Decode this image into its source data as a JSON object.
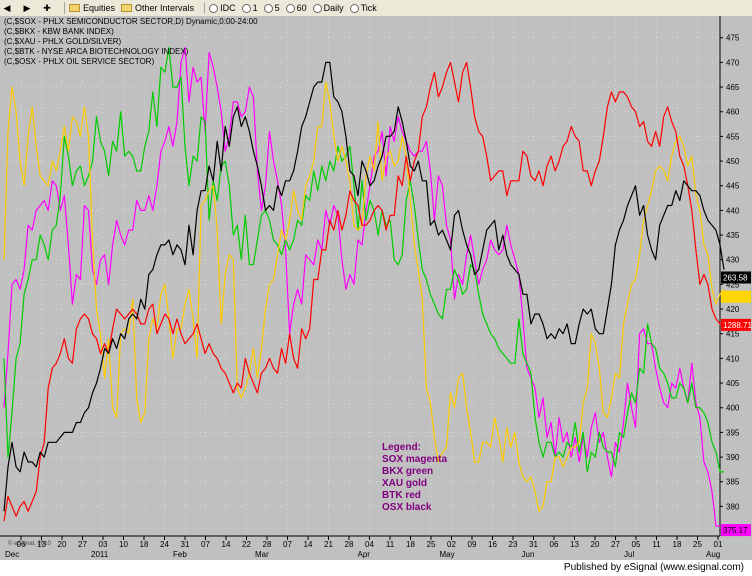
{
  "toolbar": {
    "items": [
      {
        "icon": "arrow-left-icon",
        "label": ""
      },
      {
        "icon": "arrow-right-icon",
        "label": ""
      },
      {
        "icon": "plus-icon",
        "label": ""
      },
      {
        "icon": "folder-icon",
        "label": "Equities"
      },
      {
        "icon": "folder-icon",
        "label": "Other Intervals"
      },
      {
        "icon": "clock-icon",
        "label": "IDC"
      },
      {
        "icon": "clock-icon",
        "label": "1"
      },
      {
        "icon": "clock-icon",
        "label": "5"
      },
      {
        "icon": "clock-icon",
        "label": "60"
      },
      {
        "icon": "clock-icon",
        "label": "Daily"
      },
      {
        "icon": "clock-icon",
        "label": "Tick"
      }
    ]
  },
  "chart_data": {
    "type": "line",
    "header_lines": [
      "(C,$SOX - PHLX SEMICONDUCTOR SECTOR,D) Dynamic,0:00-24:00",
      "(C,$BKX - KBW BANK INDEX)",
      "(C,$XAU - PHLX GOLD/SILVER)",
      "(C,$BTK - NYSE ARCA BIOTECHNOLOGY INDEX)",
      "(C,$OSX - PHLX OIL SERVICE SECTOR)"
    ],
    "ylim": [
      374,
      479
    ],
    "y_ticks": [
      380,
      385,
      390,
      395,
      400,
      405,
      410,
      415,
      420,
      425,
      430,
      435,
      440,
      445,
      450,
      455,
      460,
      465,
      470,
      475
    ],
    "x_day_ticks": [
      "06",
      "13",
      "20",
      "27",
      "03",
      "10",
      "18",
      "24",
      "31",
      "07",
      "14",
      "22",
      "28",
      "07",
      "14",
      "21",
      "28",
      "04",
      "11",
      "18",
      "25",
      "02",
      "09",
      "16",
      "23",
      "31",
      "06",
      "13",
      "20",
      "27",
      "05",
      "11",
      "18",
      "25",
      "01"
    ],
    "x_month_labels": [
      "Dec",
      "2011",
      "Feb",
      "Mar",
      "Apr",
      "May",
      "Jun",
      "Jul",
      "Aug"
    ],
    "legend": {
      "title": "Legend:",
      "entries": [
        "SOX magenta",
        "BKX green",
        "XAU gold",
        "BTK red",
        "OSX black"
      ]
    },
    "price_labels": [
      {
        "text": "263.58",
        "y": 426.4,
        "color": "#000000",
        "textColor": "#ffffff"
      },
      {
        "text": "",
        "y": 422.5,
        "color": "#ffd700",
        "textColor": "#000000"
      },
      {
        "text": "1288.71",
        "y": 416.8,
        "color": "#ff0000",
        "textColor": "#ffffff"
      },
      {
        "text": "375.17",
        "y": 375.2,
        "color": "#ff00ff",
        "textColor": "#000000"
      }
    ],
    "watermark": "© eSignal, 2010",
    "series": [
      {
        "name": "SOX",
        "color": "#ff00ff",
        "values": [
          400,
          411,
          425,
          426,
          424,
          428,
          437,
          436,
          440,
          441,
          442,
          440,
          446,
          445,
          440,
          443,
          433,
          421,
          427,
          426,
          441,
          440,
          428,
          425,
          430,
          431,
          425,
          433,
          438,
          435,
          433,
          436,
          436,
          442,
          440,
          440,
          443,
          440,
          445,
          452,
          454,
          457,
          453,
          458,
          470,
          473,
          462,
          469,
          466,
          467,
          456,
          472,
          469,
          465,
          460,
          452,
          455,
          462,
          462,
          459,
          460,
          465,
          463,
          448,
          440,
          445,
          456,
          450,
          446,
          441,
          432,
          415,
          421,
          424,
          421,
          431,
          430,
          429,
          434,
          432,
          440,
          437,
          441,
          439,
          430,
          424,
          427,
          425,
          434,
          433,
          440,
          445,
          451,
          452,
          456,
          447,
          457,
          454,
          459,
          456,
          454,
          452,
          451,
          452,
          452,
          454,
          448,
          438,
          447,
          445,
          437,
          434,
          422,
          427,
          425,
          431,
          435,
          430,
          425,
          428,
          430,
          434,
          432,
          431,
          432,
          437,
          433,
          430,
          427,
          418,
          408,
          406,
          404,
          398,
          402,
          394,
          397,
          390,
          398,
          393,
          395,
          390,
          394,
          389,
          394,
          390,
          396,
          399,
          393,
          395,
          390,
          386,
          393,
          391,
          397,
          405,
          400,
          396,
          415,
          416,
          413,
          413,
          408,
          404,
          401,
          400,
          405,
          404,
          408,
          404,
          401,
          409,
          401,
          398,
          389,
          387,
          383,
          376,
          376
        ]
      },
      {
        "name": "BKX",
        "color": "#00cc00",
        "values": [
          410,
          390,
          399,
          410,
          413,
          423,
          426,
          430,
          430,
          435,
          433,
          430,
          436,
          437,
          443,
          455,
          451,
          445,
          448,
          449,
          445,
          447,
          450,
          459,
          454,
          452,
          447,
          454,
          452,
          460,
          451,
          452,
          451,
          448,
          448,
          453,
          456,
          464,
          457,
          469,
          468,
          473,
          465,
          465,
          467,
          453,
          445,
          451,
          450,
          459,
          458,
          438,
          446,
          442,
          449,
          450,
          445,
          435,
          437,
          430,
          439,
          429,
          429,
          434,
          439,
          440,
          438,
          434,
          433,
          431,
          434,
          432,
          434,
          438,
          437,
          443,
          442,
          448,
          444,
          449,
          446,
          450,
          448,
          453,
          450,
          451,
          453,
          445,
          436,
          446,
          438,
          442,
          440,
          435,
          440,
          437,
          438,
          430,
          429,
          431,
          442,
          446,
          441,
          434,
          428,
          426,
          423,
          421,
          419,
          418,
          424,
          424,
          428,
          426,
          423,
          424,
          429,
          428,
          423,
          419,
          417,
          415,
          414,
          412,
          411,
          410,
          409,
          409,
          418,
          411,
          409,
          407,
          398,
          393,
          390,
          393,
          393,
          390,
          391,
          390,
          393,
          392,
          397,
          391,
          395,
          387,
          391,
          390,
          395,
          392,
          391,
          391,
          388,
          395,
          394,
          399,
          403,
          401,
          408,
          407,
          417,
          413,
          412,
          408,
          407,
          405,
          402,
          402,
          405,
          404,
          401,
          405,
          400,
          400,
          399,
          397,
          393,
          391,
          387,
          387
        ]
      },
      {
        "name": "XAU",
        "color": "#ffcc00",
        "values": [
          430,
          456,
          465,
          460,
          450,
          445,
          455,
          461,
          453,
          447,
          446,
          445,
          450,
          448,
          452,
          457,
          452,
          459,
          458,
          455,
          461,
          455,
          434,
          420,
          415,
          406,
          414,
          400,
          398,
          415,
          416,
          415,
          422,
          402,
          397,
          399,
          414,
          418,
          416,
          423,
          425,
          418,
          410,
          416,
          416,
          421,
          424,
          418,
          410,
          441,
          442,
          444,
          445,
          436,
          417,
          427,
          431,
          430,
          404,
          402,
          404,
          407,
          412,
          406,
          412,
          420,
          425,
          426,
          431,
          436,
          434,
          438,
          444,
          440,
          438,
          445,
          447,
          450,
          457,
          457,
          466,
          462,
          455,
          450,
          453,
          450,
          446,
          437,
          436,
          437,
          447,
          451,
          448,
          458,
          446,
          451,
          452,
          449,
          450,
          455,
          451,
          442,
          433,
          428,
          422,
          404,
          401,
          394,
          389,
          391,
          392,
          403,
          400,
          406,
          407,
          400,
          395,
          389,
          389,
          393,
          393,
          392,
          398,
          394,
          389,
          396,
          392,
          395,
          389,
          386,
          385,
          386,
          383,
          379,
          380,
          385,
          385,
          390,
          390,
          388,
          390,
          392,
          392,
          393,
          401,
          404,
          415,
          413,
          408,
          399,
          398,
          402,
          407,
          406,
          417,
          421,
          425,
          426,
          431,
          438,
          441,
          444,
          448,
          449,
          448,
          446,
          451,
          454,
          455,
          453,
          449,
          451,
          443,
          440,
          433,
          431,
          424,
          421,
          423,
          424
        ]
      },
      {
        "name": "BTK",
        "color": "#ff0000",
        "values": [
          377,
          382,
          380,
          378,
          380,
          381,
          379,
          381,
          383,
          390,
          393,
          404,
          408,
          409,
          411,
          414,
          410,
          409,
          416,
          418,
          419,
          418,
          415,
          414,
          411,
          413,
          411,
          416,
          420,
          419,
          418,
          419,
          420,
          419,
          417,
          417,
          420,
          421,
          415,
          417,
          419,
          418,
          415,
          418,
          415,
          413,
          414,
          415,
          417,
          414,
          411,
          413,
          411,
          410,
          408,
          407,
          405,
          403,
          405,
          404,
          410,
          407,
          405,
          403,
          407,
          408,
          410,
          408,
          407,
          412,
          409,
          415,
          410,
          408,
          416,
          414,
          416,
          426,
          426,
          432,
          432,
          438,
          436,
          440,
          436,
          439,
          444,
          442,
          441,
          437,
          437,
          438,
          440,
          441,
          440,
          436,
          439,
          439,
          447,
          445,
          451,
          446,
          450,
          452,
          459,
          461,
          465,
          468,
          463,
          465,
          468,
          470,
          466,
          462,
          468,
          470,
          465,
          459,
          456,
          455,
          451,
          446,
          447,
          448,
          448,
          443,
          446,
          446,
          446,
          452,
          451,
          447,
          446,
          448,
          445,
          449,
          451,
          448,
          450,
          453,
          454,
          457,
          455,
          454,
          448,
          448,
          445,
          448,
          450,
          455,
          461,
          464,
          462,
          464,
          464,
          463,
          461,
          460,
          457,
          458,
          454,
          453,
          456,
          453,
          459,
          461,
          458,
          456,
          451,
          449,
          445,
          440,
          432,
          425,
          427,
          425,
          420,
          418,
          417,
          417
        ]
      },
      {
        "name": "OSX",
        "color": "#000000",
        "values": [
          379,
          388,
          393,
          388,
          387,
          391,
          389,
          389,
          388,
          391,
          390,
          393,
          393,
          393,
          394,
          395,
          395,
          395,
          397,
          397,
          399,
          400,
          403,
          405,
          408,
          412,
          411,
          414,
          412,
          415,
          414,
          418,
          419,
          418,
          422,
          420,
          427,
          428,
          431,
          433,
          433,
          434,
          431,
          433,
          432,
          429,
          437,
          431,
          440,
          444,
          444,
          449,
          446,
          454,
          448,
          457,
          453,
          459,
          461,
          457,
          459,
          456,
          452,
          449,
          445,
          440,
          441,
          440,
          445,
          443,
          446,
          446,
          448,
          452,
          457,
          459,
          462,
          465,
          466,
          466,
          470,
          470,
          463,
          462,
          460,
          455,
          448,
          447,
          443,
          450,
          448,
          445,
          446,
          449,
          451,
          455,
          455,
          456,
          461,
          458,
          454,
          449,
          448,
          450,
          446,
          446,
          437,
          438,
          435,
          436,
          434,
          432,
          439,
          440,
          436,
          433,
          431,
          427,
          428,
          432,
          436,
          437,
          438,
          432,
          435,
          431,
          429,
          428,
          427,
          423,
          423,
          417,
          419,
          419,
          417,
          414,
          415,
          414,
          416,
          415,
          417,
          413,
          413,
          417,
          420,
          419,
          420,
          416,
          415,
          415,
          420,
          425,
          433,
          436,
          438,
          441,
          443,
          445,
          439,
          441,
          435,
          432,
          430,
          437,
          439,
          441,
          441,
          444,
          442,
          446,
          445,
          444,
          444,
          443,
          440,
          438,
          437,
          436,
          433,
          428
        ]
      }
    ]
  },
  "footer": {
    "text": "Published by eSignal (www.esignal.com)"
  }
}
